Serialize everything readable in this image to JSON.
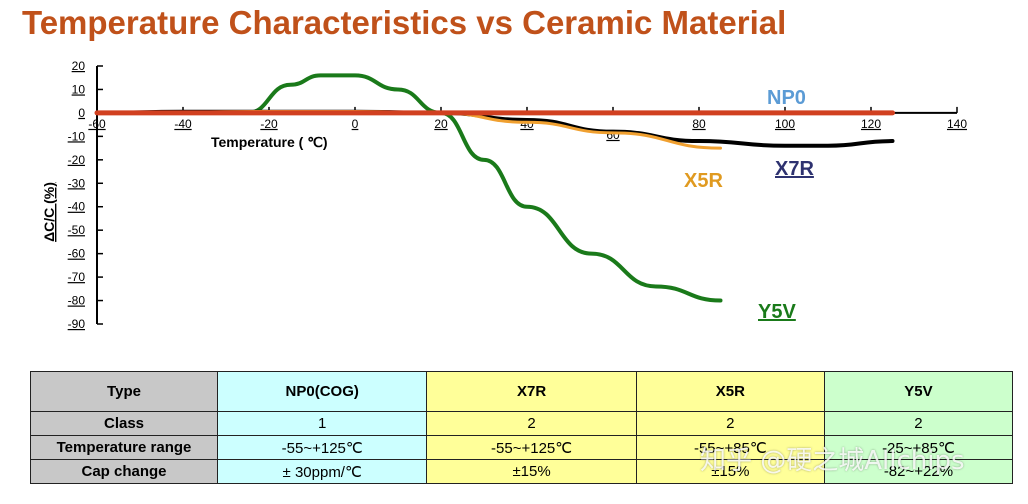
{
  "chart_data": {
    "type": "line",
    "title": "Temperature Characteristics vs Ceramic Material",
    "xlabel": "Temperature ( ℃)",
    "ylabel": "ΔC/C (%)",
    "xlim": [
      -60,
      140
    ],
    "ylim": [
      -90,
      20
    ],
    "x_ticks": [
      "-60",
      "-40",
      "-20",
      "0",
      "20",
      "40",
      "60",
      "80",
      "100",
      "120",
      "140"
    ],
    "y_ticks": [
      "20",
      "10",
      "0",
      "-10",
      "-20",
      "-30",
      "-40",
      "-50",
      "-60",
      "-70",
      "-80",
      "-90"
    ],
    "grid": false,
    "series": [
      {
        "name": "NP0",
        "color": "#d14020",
        "label_color": "#5b9bd5",
        "x": [
          -60,
          125
        ],
        "y": [
          0,
          0
        ]
      },
      {
        "name": "X7R",
        "color": "#000000",
        "label_color": "#2e3270",
        "x": [
          -60,
          -40,
          -20,
          0,
          20,
          40,
          60,
          80,
          100,
          110,
          125
        ],
        "y": [
          0,
          0.5,
          0.5,
          0.5,
          0,
          -3,
          -8,
          -12,
          -14,
          -14,
          -12
        ]
      },
      {
        "name": "X5R",
        "color": "#f0a030",
        "label_color": "#e09a20",
        "x": [
          -55,
          -20,
          0,
          20,
          40,
          60,
          85
        ],
        "y": [
          0,
          0.6,
          0.6,
          0,
          -4,
          -8.5,
          -15
        ]
      },
      {
        "name": "Y5V",
        "color": "#1a7a1a",
        "label_color": "#1a7a1a",
        "x": [
          -25,
          -15,
          -8,
          0,
          10,
          20,
          30,
          40,
          55,
          70,
          85
        ],
        "y": [
          0,
          12,
          16,
          16,
          10,
          0,
          -20,
          -40,
          -60,
          -74,
          -80
        ]
      }
    ]
  },
  "table": {
    "headers": [
      "Type",
      "NP0(COG)",
      "X7R",
      "X5R",
      "Y5V"
    ],
    "rows": [
      {
        "label": "Class",
        "values": [
          "1",
          "2",
          "2",
          "2"
        ]
      },
      {
        "label": "Temperature range",
        "values": [
          "-55~+125℃",
          "-55~+125℃",
          "-55~+85℃",
          "-25~+85℃"
        ]
      },
      {
        "label": "Cap change",
        "values": [
          "± 30ppm/℃",
          "±15%",
          "±15%",
          "-82~+22%"
        ]
      }
    ]
  },
  "watermark": "知乎 @硬之城Allchips"
}
